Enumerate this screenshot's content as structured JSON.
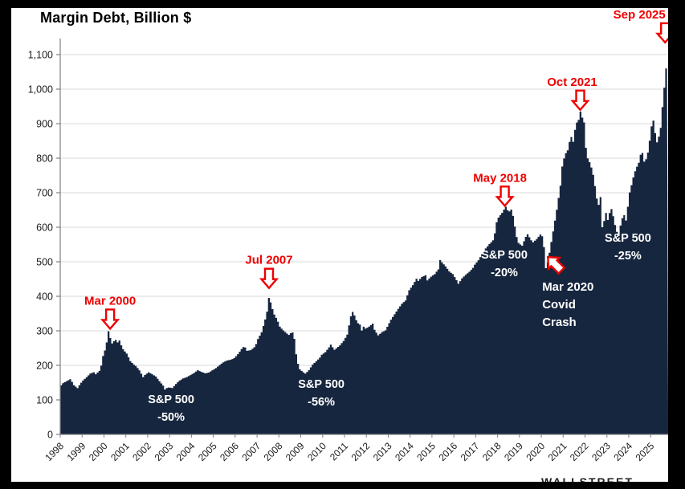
{
  "title": "Margin Debt, Billion $",
  "watermark": "WALLSTREET",
  "colors": {
    "area_fill": "#17263F",
    "annotation_red": "#ee0000",
    "grid": "#d9d9d9",
    "axis": "#808080",
    "tick_label": "#1a1a1a",
    "note_white": "#ffffff",
    "frame_black": "#000000",
    "panel_white": "#ffffff"
  },
  "chart_data": {
    "type": "area",
    "title": "Margin Debt, Billion $",
    "xlabel": "",
    "ylabel": "",
    "x_min": 1998,
    "x_max": 2025.8,
    "y_min": 0,
    "y_max": 1150,
    "grid": true,
    "y_tick_values": [
      0,
      100,
      200,
      300,
      400,
      500,
      600,
      700,
      800,
      900,
      1000,
      1100
    ],
    "y_tick_labels": [
      "0",
      "100",
      "200",
      "300",
      "400",
      "500",
      "600",
      "700",
      "800",
      "900",
      "1,000",
      "1,100"
    ],
    "x_tick_labels": [
      "1998",
      "1999",
      "2000",
      "2001",
      "2002",
      "2003",
      "2004",
      "2005",
      "2006",
      "2007",
      "2008",
      "2009",
      "2010",
      "2011",
      "2012",
      "2013",
      "2014",
      "2015",
      "2016",
      "2017",
      "2018",
      "2019",
      "2020",
      "2021",
      "2022",
      "2023",
      "2024",
      "2025"
    ],
    "series": [
      {
        "name": "Margin Debt ($B)",
        "points": [
          [
            1998.0,
            142
          ],
          [
            1998.08,
            148
          ],
          [
            1998.25,
            154
          ],
          [
            1998.42,
            160
          ],
          [
            1998.5,
            152
          ],
          [
            1998.58,
            143
          ],
          [
            1998.75,
            134
          ],
          [
            1998.83,
            142
          ],
          [
            1998.92,
            150
          ],
          [
            1999.0,
            156
          ],
          [
            1999.17,
            166
          ],
          [
            1999.33,
            176
          ],
          [
            1999.5,
            180
          ],
          [
            1999.58,
            174
          ],
          [
            1999.75,
            184
          ],
          [
            1999.83,
            198
          ],
          [
            1999.92,
            228
          ],
          [
            2000.0,
            243
          ],
          [
            2000.08,
            265
          ],
          [
            2000.17,
            300
          ],
          [
            2000.25,
            279
          ],
          [
            2000.33,
            263
          ],
          [
            2000.42,
            270
          ],
          [
            2000.5,
            274
          ],
          [
            2000.58,
            266
          ],
          [
            2000.67,
            272
          ],
          [
            2000.75,
            258
          ],
          [
            2000.83,
            247
          ],
          [
            2000.92,
            240
          ],
          [
            2001.0,
            234
          ],
          [
            2001.17,
            212
          ],
          [
            2001.33,
            202
          ],
          [
            2001.42,
            198
          ],
          [
            2001.58,
            186
          ],
          [
            2001.75,
            166
          ],
          [
            2001.83,
            172
          ],
          [
            2001.92,
            176
          ],
          [
            2002.0,
            180
          ],
          [
            2002.17,
            174
          ],
          [
            2002.33,
            168
          ],
          [
            2002.5,
            154
          ],
          [
            2002.67,
            141
          ],
          [
            2002.75,
            130
          ],
          [
            2002.83,
            134
          ],
          [
            2002.92,
            136
          ],
          [
            2003.08,
            134
          ],
          [
            2003.25,
            146
          ],
          [
            2003.42,
            156
          ],
          [
            2003.58,
            162
          ],
          [
            2003.75,
            166
          ],
          [
            2003.92,
            172
          ],
          [
            2004.08,
            178
          ],
          [
            2004.25,
            186
          ],
          [
            2004.42,
            181
          ],
          [
            2004.58,
            177
          ],
          [
            2004.75,
            179
          ],
          [
            2004.92,
            186
          ],
          [
            2005.08,
            192
          ],
          [
            2005.25,
            201
          ],
          [
            2005.42,
            209
          ],
          [
            2005.58,
            214
          ],
          [
            2005.75,
            216
          ],
          [
            2005.92,
            221
          ],
          [
            2006.08,
            232
          ],
          [
            2006.25,
            247
          ],
          [
            2006.38,
            256
          ],
          [
            2006.5,
            242
          ],
          [
            2006.67,
            244
          ],
          [
            2006.83,
            252
          ],
          [
            2006.92,
            262
          ],
          [
            2007.0,
            276
          ],
          [
            2007.17,
            296
          ],
          [
            2007.33,
            332
          ],
          [
            2007.42,
            356
          ],
          [
            2007.54,
            415
          ],
          [
            2007.58,
            383
          ],
          [
            2007.67,
            362
          ],
          [
            2007.75,
            347
          ],
          [
            2007.83,
            338
          ],
          [
            2007.92,
            326
          ],
          [
            2008.0,
            312
          ],
          [
            2008.17,
            301
          ],
          [
            2008.33,
            292
          ],
          [
            2008.42,
            288
          ],
          [
            2008.5,
            293
          ],
          [
            2008.58,
            296
          ],
          [
            2008.67,
            276
          ],
          [
            2008.75,
            232
          ],
          [
            2008.83,
            205
          ],
          [
            2008.92,
            188
          ],
          [
            2009.08,
            180
          ],
          [
            2009.17,
            176
          ],
          [
            2009.33,
            186
          ],
          [
            2009.5,
            202
          ],
          [
            2009.67,
            212
          ],
          [
            2009.83,
            222
          ],
          [
            2009.92,
            231
          ],
          [
            2010.08,
            238
          ],
          [
            2010.25,
            252
          ],
          [
            2010.33,
            260
          ],
          [
            2010.5,
            245
          ],
          [
            2010.58,
            249
          ],
          [
            2010.75,
            258
          ],
          [
            2010.92,
            271
          ],
          [
            2011.08,
            288
          ],
          [
            2011.25,
            342
          ],
          [
            2011.33,
            355
          ],
          [
            2011.42,
            344
          ],
          [
            2011.5,
            331
          ],
          [
            2011.58,
            322
          ],
          [
            2011.67,
            318
          ],
          [
            2011.75,
            301
          ],
          [
            2011.83,
            312
          ],
          [
            2011.92,
            306
          ],
          [
            2012.08,
            312
          ],
          [
            2012.25,
            321
          ],
          [
            2012.33,
            303
          ],
          [
            2012.5,
            287
          ],
          [
            2012.67,
            296
          ],
          [
            2012.83,
            301
          ],
          [
            2012.92,
            312
          ],
          [
            2013.08,
            332
          ],
          [
            2013.25,
            348
          ],
          [
            2013.42,
            364
          ],
          [
            2013.58,
            378
          ],
          [
            2013.75,
            388
          ],
          [
            2013.92,
            418
          ],
          [
            2014.08,
            432
          ],
          [
            2014.25,
            451
          ],
          [
            2014.33,
            444
          ],
          [
            2014.5,
            456
          ],
          [
            2014.67,
            461
          ],
          [
            2014.75,
            446
          ],
          [
            2014.92,
            457
          ],
          [
            2015.08,
            464
          ],
          [
            2015.25,
            478
          ],
          [
            2015.33,
            505
          ],
          [
            2015.42,
            498
          ],
          [
            2015.58,
            487
          ],
          [
            2015.75,
            472
          ],
          [
            2015.92,
            464
          ],
          [
            2016.08,
            447
          ],
          [
            2016.17,
            436
          ],
          [
            2016.33,
            452
          ],
          [
            2016.5,
            462
          ],
          [
            2016.67,
            471
          ],
          [
            2016.83,
            482
          ],
          [
            2016.92,
            492
          ],
          [
            2017.08,
            504
          ],
          [
            2017.25,
            522
          ],
          [
            2017.42,
            539
          ],
          [
            2017.58,
            551
          ],
          [
            2017.75,
            562
          ],
          [
            2017.83,
            581
          ],
          [
            2017.92,
            616
          ],
          [
            2018.0,
            628
          ],
          [
            2018.17,
            642
          ],
          [
            2018.33,
            660
          ],
          [
            2018.42,
            649
          ],
          [
            2018.5,
            646
          ],
          [
            2018.58,
            652
          ],
          [
            2018.67,
            632
          ],
          [
            2018.75,
            602
          ],
          [
            2018.83,
            572
          ],
          [
            2018.92,
            554
          ],
          [
            2019.08,
            546
          ],
          [
            2019.25,
            572
          ],
          [
            2019.33,
            580
          ],
          [
            2019.5,
            562
          ],
          [
            2019.58,
            556
          ],
          [
            2019.75,
            566
          ],
          [
            2019.92,
            579
          ],
          [
            2020.0,
            574
          ],
          [
            2020.08,
            545
          ],
          [
            2020.17,
            479
          ],
          [
            2020.25,
            498
          ],
          [
            2020.33,
            525
          ],
          [
            2020.5,
            588
          ],
          [
            2020.67,
            652
          ],
          [
            2020.83,
            718
          ],
          [
            2020.92,
            778
          ],
          [
            2021.0,
            799
          ],
          [
            2021.08,
            814
          ],
          [
            2021.17,
            823
          ],
          [
            2021.25,
            847
          ],
          [
            2021.33,
            862
          ],
          [
            2021.42,
            847
          ],
          [
            2021.5,
            882
          ],
          [
            2021.58,
            903
          ],
          [
            2021.67,
            911
          ],
          [
            2021.75,
            935
          ],
          [
            2021.83,
            918
          ],
          [
            2021.92,
            903
          ],
          [
            2022.0,
            830
          ],
          [
            2022.08,
            800
          ],
          [
            2022.17,
            788
          ],
          [
            2022.25,
            773
          ],
          [
            2022.33,
            753
          ],
          [
            2022.42,
            718
          ],
          [
            2022.5,
            683
          ],
          [
            2022.58,
            664
          ],
          [
            2022.67,
            688
          ],
          [
            2022.75,
            600
          ],
          [
            2022.83,
            617
          ],
          [
            2022.92,
            642
          ],
          [
            2023.0,
            621
          ],
          [
            2023.08,
            641
          ],
          [
            2023.17,
            653
          ],
          [
            2023.25,
            632
          ],
          [
            2023.33,
            607
          ],
          [
            2023.42,
            586
          ],
          [
            2023.5,
            575
          ],
          [
            2023.58,
            604
          ],
          [
            2023.67,
            627
          ],
          [
            2023.75,
            635
          ],
          [
            2023.83,
            618
          ],
          [
            2023.92,
            661
          ],
          [
            2024.0,
            701
          ],
          [
            2024.08,
            721
          ],
          [
            2024.17,
            745
          ],
          [
            2024.25,
            762
          ],
          [
            2024.33,
            775
          ],
          [
            2024.42,
            787
          ],
          [
            2024.5,
            810
          ],
          [
            2024.58,
            816
          ],
          [
            2024.67,
            789
          ],
          [
            2024.75,
            797
          ],
          [
            2024.83,
            815
          ],
          [
            2024.92,
            852
          ],
          [
            2025.0,
            892
          ],
          [
            2025.08,
            910
          ],
          [
            2025.17,
            871
          ],
          [
            2025.25,
            846
          ],
          [
            2025.33,
            861
          ],
          [
            2025.42,
            889
          ],
          [
            2025.5,
            948
          ],
          [
            2025.58,
            1002
          ],
          [
            2025.67,
            1062
          ],
          [
            2025.72,
            1130
          ]
        ]
      }
    ],
    "peak_annotations": [
      {
        "label": "Mar 2000",
        "year": 2000.28,
        "value": 306,
        "label_dx": 0
      },
      {
        "label": "Jul 2007",
        "year": 2007.55,
        "value": 424,
        "label_dx": 0
      },
      {
        "label": "May 2018",
        "year": 2018.33,
        "value": 662,
        "label_dx": -6
      },
      {
        "label": "Oct 2021",
        "year": 2021.78,
        "value": 940,
        "label_dx": -10
      },
      {
        "label": "Sep 2025",
        "year": 2025.66,
        "value": 1135,
        "label_dx": -32
      }
    ],
    "drawdown_notes": [
      {
        "lines": [
          "S&P 500",
          "-50%"
        ],
        "year": 2003.07,
        "value": 79
      },
      {
        "lines": [
          "S&P 500",
          "-56%"
        ],
        "year": 2009.94,
        "value": 123
      },
      {
        "lines": [
          "S&P 500",
          "-20%"
        ],
        "year": 2018.31,
        "value": 498
      },
      {
        "lines": [
          "S&P 500",
          "-25%"
        ],
        "year": 2023.96,
        "value": 547
      }
    ],
    "covid_annotation": {
      "lines": [
        "Mar 2020",
        "Covid",
        "Crash"
      ],
      "text_year": 2020.04,
      "text_value": 447,
      "arrow_year": 2020.3,
      "arrow_value": 514
    }
  }
}
